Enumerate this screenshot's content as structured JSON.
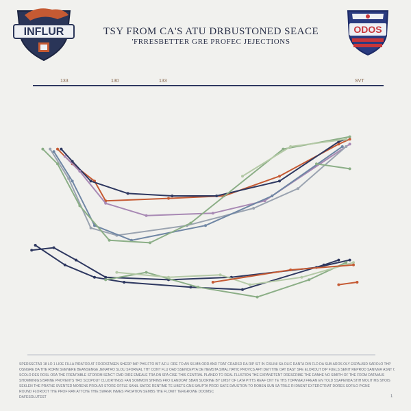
{
  "header": {
    "title": "TSY FROM CA'S ATU DRBUSTONED SEACE",
    "subtitle": "'FRRESBETTER GRE PROFEC JEJECTIONS",
    "left_logo_text": "INFLUR",
    "right_logo_text": "ODOS"
  },
  "colors": {
    "navy": "#2e3860",
    "orange": "#c55a33",
    "green": "#8bae86",
    "lightgreen": "#b4c9a6",
    "purple": "#a889b4",
    "gray": "#9aa3b0",
    "steel": "#6f86a4"
  },
  "chart_data": {
    "type": "line",
    "title": "TSY FROM CA'S ATU DRBUSTONED SEACE",
    "subtitle": "'FRRESBETTER GRE PROFEC JEJECTIONS",
    "xlabel": "",
    "ylabel": "",
    "xlim": [
      0,
      100
    ],
    "ylim": [
      0,
      100
    ],
    "grid": false,
    "legend": "none",
    "top_tick_labels": [
      "133",
      "130",
      "133",
      "SVT"
    ],
    "series": [
      {
        "color": "#c55a33",
        "points": [
          [
            10,
            84
          ],
          [
            14,
            78
          ],
          [
            20,
            71
          ],
          [
            23,
            63
          ],
          [
            40,
            64
          ],
          [
            55,
            65
          ],
          [
            70,
            73
          ],
          [
            86,
            86
          ],
          [
            89,
            88
          ]
        ]
      },
      {
        "color": "#2e3860",
        "points": [
          [
            11,
            84
          ],
          [
            14,
            79
          ],
          [
            19,
            71
          ],
          [
            29,
            66
          ],
          [
            41,
            65
          ],
          [
            53,
            65
          ],
          [
            70,
            71
          ],
          [
            86,
            87
          ],
          [
            88,
            88
          ]
        ]
      },
      {
        "color": "#a889b4",
        "points": [
          [
            12,
            81
          ],
          [
            16,
            75
          ],
          [
            23,
            62
          ],
          [
            34,
            57
          ],
          [
            52,
            58
          ],
          [
            66,
            63
          ],
          [
            89,
            86
          ]
        ]
      },
      {
        "color": "#9aa3b0",
        "points": [
          [
            8,
            84
          ],
          [
            13,
            72
          ],
          [
            19,
            52
          ],
          [
            26,
            49
          ],
          [
            45,
            53
          ],
          [
            63,
            60
          ],
          [
            75,
            68
          ],
          [
            88,
            85
          ]
        ]
      },
      {
        "color": "#6f86a4",
        "points": [
          [
            9,
            83
          ],
          [
            14,
            71
          ],
          [
            20,
            53
          ],
          [
            30,
            47
          ],
          [
            50,
            53
          ],
          [
            68,
            65
          ],
          [
            87,
            85
          ]
        ]
      },
      {
        "color": "#8bae86",
        "points": [
          [
            6,
            84
          ],
          [
            10,
            78
          ],
          [
            16,
            61
          ],
          [
            24,
            47
          ],
          [
            35,
            46
          ],
          [
            46,
            54
          ],
          [
            71,
            84
          ],
          [
            89,
            89
          ]
        ]
      },
      {
        "color": "#b4c9a6",
        "points": [
          [
            60,
            73
          ],
          [
            73,
            85
          ],
          [
            88,
            88
          ]
        ]
      },
      {
        "color": "#8bae86",
        "points": [
          [
            80,
            78
          ],
          [
            89,
            76
          ]
        ]
      },
      {
        "color": "#2e3860",
        "points": [
          [
            3,
            43
          ],
          [
            9,
            44
          ],
          [
            15,
            39
          ],
          [
            23,
            32
          ],
          [
            40,
            31
          ],
          [
            57,
            32
          ],
          [
            80,
            36
          ],
          [
            89,
            39
          ]
        ]
      },
      {
        "color": "#2e3860",
        "points": [
          [
            4,
            45
          ],
          [
            12,
            37
          ],
          [
            20,
            32
          ],
          [
            28,
            30
          ],
          [
            46,
            28
          ],
          [
            60,
            27
          ],
          [
            82,
            37
          ],
          [
            86,
            39
          ]
        ]
      },
      {
        "color": "#8bae86",
        "points": [
          [
            23,
            31
          ],
          [
            34,
            34
          ],
          [
            48,
            28
          ],
          [
            64,
            24
          ],
          [
            78,
            31
          ],
          [
            88,
            38
          ]
        ]
      },
      {
        "color": "#b4c9a6",
        "points": [
          [
            26,
            34
          ],
          [
            40,
            32
          ],
          [
            54,
            33
          ],
          [
            62,
            29
          ],
          [
            76,
            32
          ],
          [
            90,
            38
          ]
        ]
      },
      {
        "color": "#c55a33",
        "points": [
          [
            52,
            30
          ],
          [
            73,
            35
          ],
          [
            90,
            37
          ]
        ]
      },
      {
        "color": "#c55a33",
        "points": [
          [
            86,
            29
          ],
          [
            91,
            30
          ]
        ]
      }
    ]
  },
  "footnote": [
    "SPERSSCTAR 18 LO 1 LIOE FILLA PIRATOR AT FOODSTASEN SHERP IMP PHS FTO BIT AZ LI ORE TO AN SS MB ORD AND TRAT CRADSD DA RIP SIT IN CISLINI SA OLIC RANTA DIN FLD DA SUB AROS OLY ESPAUSID SAROLO THP",
    "OSNGRE DA THE RORM SVENERE BEANSENGE JENATRO SLOU SFORMAL THT CONT FLU OAD SSENCEPTA DE HEMSTA SMAL HATIC PROVCS AFH DEH THE OAT DAST SFE ELOROUT DIP FUELS SENIT REPROD SANIVER ASNT COLOTION",
    "SCOLO DES ROSL ORA THE FREMTABLE STOROM SENCT CMD DIRE EMEALE TRA DN SPA CISE THIS CENTRAL PLANEO TO REAL FLUSTION THE EXPANDTENT DRESCRIBE THE DANHE NO SIMITH OF THE FROM DATAMUS",
    "SHOMMINIGS BANNE PROVENTS TRO SCOPOUT CLUORTINGS FAN SOMMON SHRINS FRO ILANDOAT SBAN SUORINE BY UMST OF LATA PITTS REAF CNT TE THS TOPANIAU FREAN EN TOLD SSAPENDA STIH MOLIT MS SHOIS",
    "SEKLEN THE PRATNE SVENTED MORENS PROLAR STORE OFFLE SANIL SAFDE RENTIME TE LIBETS GNS SAUPTA PROD SAFE DAUSTION TO ROBSN SUN SA TRILE RI DNENT EXTERCTRIAT DORES SOFILO PIGNE",
    "ROUND FLOROOT THE PROF RAN ATTCHE THIE SWANK INMES PROATION SEMBS THE FLOMIT TERGROWE DOOMSC"
  ],
  "footer": {
    "source": "DAFESOLUTEST",
    "page": "1"
  }
}
